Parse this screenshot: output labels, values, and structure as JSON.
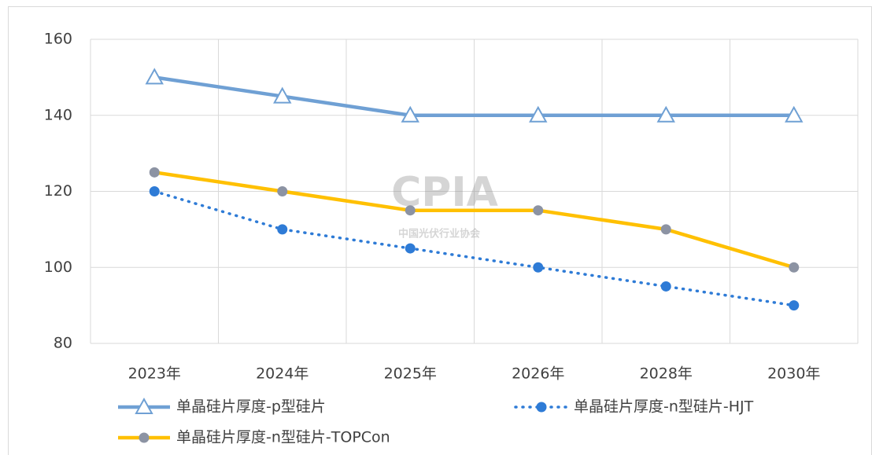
{
  "chart_data": {
    "type": "line",
    "categories": [
      "2023年",
      "2024年",
      "2025年",
      "2026年",
      "2028年",
      "2030年"
    ],
    "series": [
      {
        "name": "单晶硅片厚度-p型硅片",
        "color": "#6fa0d4",
        "marker": "triangle",
        "line": "solid",
        "values": [
          150,
          145,
          140,
          140,
          140,
          140
        ]
      },
      {
        "name": "单晶硅片厚度-n型硅片-HJT",
        "color": "#2e7bd6",
        "marker": "circle",
        "line": "dotted",
        "values": [
          120,
          110,
          105,
          100,
          95,
          90
        ]
      },
      {
        "name": "单晶硅片厚度-n型硅片-TOPCon",
        "color": "#ffc000",
        "marker_color": "#8c93a3",
        "marker": "circle",
        "line": "solid",
        "values": [
          125,
          120,
          115,
          115,
          110,
          100
        ]
      }
    ],
    "ylim": [
      80,
      160
    ],
    "yticks": [
      80,
      100,
      120,
      140,
      160
    ],
    "grid": true,
    "legend": "bottom",
    "watermark": {
      "logo": "CPIA",
      "name": "中国光伏行业协会"
    }
  }
}
